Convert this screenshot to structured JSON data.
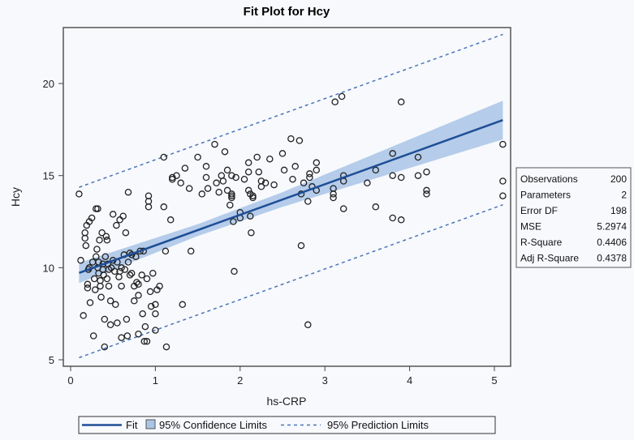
{
  "chart_data": {
    "type": "scatter",
    "title": "Fit Plot for Hcy",
    "xlabel": "hs-CRP",
    "ylabel": "Hcy",
    "xlim": [
      -0.1,
      5.2
    ],
    "ylim": [
      4.6,
      23.0
    ],
    "xticks": [
      0,
      1,
      2,
      3,
      4,
      5
    ],
    "yticks": [
      5,
      10,
      15,
      20
    ],
    "grid": false,
    "fit": {
      "intercept": 9.55,
      "slope": 1.66,
      "x_range": [
        0.1,
        5.1
      ],
      "confidence_halfwidth_at": [
        [
          0.1,
          0.55
        ],
        [
          1.5,
          0.32
        ],
        [
          2.5,
          0.4
        ],
        [
          3.5,
          0.65
        ],
        [
          5.1,
          1.05
        ]
      ],
      "prediction_halfwidth": 4.6
    },
    "points": [
      [
        0.1,
        14.0
      ],
      [
        0.12,
        10.4
      ],
      [
        0.15,
        7.4
      ],
      [
        0.17,
        11.9
      ],
      [
        0.17,
        11.6
      ],
      [
        0.18,
        11.2
      ],
      [
        0.19,
        12.3
      ],
      [
        0.2,
        9.1
      ],
      [
        0.2,
        8.9
      ],
      [
        0.21,
        9.9
      ],
      [
        0.22,
        12.5
      ],
      [
        0.22,
        10.0
      ],
      [
        0.23,
        8.1
      ],
      [
        0.25,
        12.7
      ],
      [
        0.26,
        10.3
      ],
      [
        0.27,
        6.3
      ],
      [
        0.28,
        9.4
      ],
      [
        0.29,
        8.8
      ],
      [
        0.3,
        13.2
      ],
      [
        0.3,
        10.6
      ],
      [
        0.31,
        11.0
      ],
      [
        0.32,
        13.2
      ],
      [
        0.32,
        10.0
      ],
      [
        0.33,
        9.7
      ],
      [
        0.34,
        11.5
      ],
      [
        0.35,
        9.3
      ],
      [
        0.35,
        9.0
      ],
      [
        0.36,
        8.4
      ],
      [
        0.37,
        11.9
      ],
      [
        0.38,
        10.2
      ],
      [
        0.38,
        9.9
      ],
      [
        0.39,
        9.6
      ],
      [
        0.4,
        7.2
      ],
      [
        0.4,
        5.7
      ],
      [
        0.41,
        10.6
      ],
      [
        0.42,
        11.7
      ],
      [
        0.43,
        11.5
      ],
      [
        0.44,
        10.2
      ],
      [
        0.45,
        9.9
      ],
      [
        0.45,
        9.0
      ],
      [
        0.47,
        8.2
      ],
      [
        0.47,
        6.9
      ],
      [
        0.48,
        10.0
      ],
      [
        0.5,
        12.9
      ],
      [
        0.5,
        10.4
      ],
      [
        0.52,
        9.8
      ],
      [
        0.53,
        8.0
      ],
      [
        0.54,
        12.3
      ],
      [
        0.55,
        7.0
      ],
      [
        0.55,
        10.3
      ],
      [
        0.57,
        9.5
      ],
      [
        0.58,
        12.6
      ],
      [
        0.6,
        10.0
      ],
      [
        0.6,
        9.0
      ],
      [
        0.6,
        6.2
      ],
      [
        0.62,
        12.8
      ],
      [
        0.63,
        10.7
      ],
      [
        0.64,
        9.9
      ],
      [
        0.65,
        11.9
      ],
      [
        0.66,
        7.2
      ],
      [
        0.67,
        6.3
      ],
      [
        0.68,
        14.1
      ],
      [
        0.68,
        10.3
      ],
      [
        0.7,
        9.6
      ],
      [
        0.7,
        10.8
      ],
      [
        0.72,
        9.7
      ],
      [
        0.75,
        9.0
      ],
      [
        0.75,
        8.2
      ],
      [
        0.77,
        10.6
      ],
      [
        0.78,
        9.2
      ],
      [
        0.8,
        9.1
      ],
      [
        0.8,
        8.5
      ],
      [
        0.8,
        6.4
      ],
      [
        0.82,
        10.9
      ],
      [
        0.84,
        9.6
      ],
      [
        0.85,
        7.5
      ],
      [
        0.86,
        10.9
      ],
      [
        0.87,
        6.0
      ],
      [
        0.88,
        6.8
      ],
      [
        0.9,
        9.4
      ],
      [
        0.9,
        6.0
      ],
      [
        0.92,
        13.3
      ],
      [
        0.92,
        13.9
      ],
      [
        0.92,
        13.6
      ],
      [
        0.94,
        8.7
      ],
      [
        0.95,
        7.9
      ],
      [
        0.97,
        9.7
      ],
      [
        1.0,
        8.0
      ],
      [
        1.0,
        6.6
      ],
      [
        1.0,
        7.5
      ],
      [
        1.02,
        8.8
      ],
      [
        1.05,
        9.0
      ],
      [
        1.1,
        16.0
      ],
      [
        1.1,
        13.3
      ],
      [
        1.12,
        10.9
      ],
      [
        1.13,
        5.7
      ],
      [
        1.18,
        12.6
      ],
      [
        1.2,
        14.9
      ],
      [
        1.2,
        14.8
      ],
      [
        1.25,
        15.0
      ],
      [
        1.3,
        14.6
      ],
      [
        1.32,
        8.0
      ],
      [
        1.35,
        15.4
      ],
      [
        1.4,
        14.3
      ],
      [
        1.42,
        10.9
      ],
      [
        1.5,
        16.0
      ],
      [
        1.55,
        14.0
      ],
      [
        1.6,
        15.5
      ],
      [
        1.6,
        14.9
      ],
      [
        1.62,
        14.3
      ],
      [
        1.7,
        16.7
      ],
      [
        1.72,
        14.6
      ],
      [
        1.75,
        14.1
      ],
      [
        1.78,
        15.0
      ],
      [
        1.8,
        14.7
      ],
      [
        1.82,
        16.3
      ],
      [
        1.85,
        15.3
      ],
      [
        1.85,
        14.2
      ],
      [
        1.88,
        13.4
      ],
      [
        1.9,
        14.0
      ],
      [
        1.9,
        13.9
      ],
      [
        1.9,
        15.0
      ],
      [
        1.92,
        12.5
      ],
      [
        1.93,
        9.8
      ],
      [
        1.95,
        14.9
      ],
      [
        2.0,
        13.0
      ],
      [
        2.0,
        12.7
      ],
      [
        2.05,
        14.8
      ],
      [
        2.1,
        15.7
      ],
      [
        2.1,
        15.2
      ],
      [
        2.1,
        14.2
      ],
      [
        2.12,
        14.0
      ],
      [
        2.12,
        12.8
      ],
      [
        2.13,
        11.9
      ],
      [
        2.15,
        13.9
      ],
      [
        2.15,
        13.8
      ],
      [
        2.2,
        16.0
      ],
      [
        2.22,
        15.2
      ],
      [
        2.25,
        14.7
      ],
      [
        2.25,
        14.4
      ],
      [
        2.3,
        14.6
      ],
      [
        2.35,
        15.9
      ],
      [
        2.4,
        14.5
      ],
      [
        2.5,
        16.2
      ],
      [
        2.52,
        15.3
      ],
      [
        2.6,
        17.0
      ],
      [
        2.62,
        14.8
      ],
      [
        2.65,
        15.5
      ],
      [
        2.7,
        16.9
      ],
      [
        2.72,
        11.2
      ],
      [
        2.72,
        14.0
      ],
      [
        2.75,
        14.6
      ],
      [
        2.8,
        13.6
      ],
      [
        2.8,
        6.9
      ],
      [
        2.82,
        15.1
      ],
      [
        2.82,
        14.9
      ],
      [
        2.85,
        14.4
      ],
      [
        2.9,
        15.7
      ],
      [
        2.9,
        15.3
      ],
      [
        2.9,
        14.2
      ],
      [
        3.1,
        14.3
      ],
      [
        3.1,
        14.0
      ],
      [
        3.1,
        13.8
      ],
      [
        3.12,
        19.0
      ],
      [
        3.2,
        19.3
      ],
      [
        3.22,
        15.0
      ],
      [
        3.22,
        13.2
      ],
      [
        3.22,
        14.7
      ],
      [
        3.5,
        14.6
      ],
      [
        3.6,
        13.3
      ],
      [
        3.6,
        15.3
      ],
      [
        3.8,
        16.2
      ],
      [
        3.8,
        15.0
      ],
      [
        3.8,
        12.7
      ],
      [
        3.9,
        19.0
      ],
      [
        3.9,
        14.9
      ],
      [
        3.9,
        12.6
      ],
      [
        4.1,
        16.0
      ],
      [
        4.1,
        15.0
      ],
      [
        4.2,
        15.2
      ],
      [
        4.2,
        14.2
      ],
      [
        4.2,
        14.0
      ],
      [
        5.1,
        16.7
      ],
      [
        5.1,
        14.7
      ],
      [
        5.1,
        13.9
      ],
      [
        0.33,
        10.3
      ],
      [
        0.43,
        9.4
      ],
      [
        0.58,
        9.8
      ],
      [
        0.72,
        10.7
      ],
      [
        1.9,
        13.8
      ]
    ],
    "stats_table": [
      {
        "label": "Observations",
        "value": "200"
      },
      {
        "label": "Parameters",
        "value": "2"
      },
      {
        "label": "Error DF",
        "value": "198"
      },
      {
        "label": "MSE",
        "value": "5.2974"
      },
      {
        "label": "R-Square",
        "value": "0.4406"
      },
      {
        "label": "Adj R-Square",
        "value": "0.4378"
      }
    ],
    "legend": {
      "placement": "bottom",
      "entries": [
        {
          "label": "Fit",
          "kind": "line"
        },
        {
          "label": "95% Confidence Limits",
          "kind": "band"
        },
        {
          "label": "95% Prediction Limits",
          "kind": "dashed"
        }
      ]
    },
    "colors": {
      "fit": "#1f4e96",
      "band": "#a9c4e6",
      "prediction": "#4a74b5",
      "marker": "#222222",
      "frame": "#555555",
      "background": "#f7f9fd"
    }
  }
}
